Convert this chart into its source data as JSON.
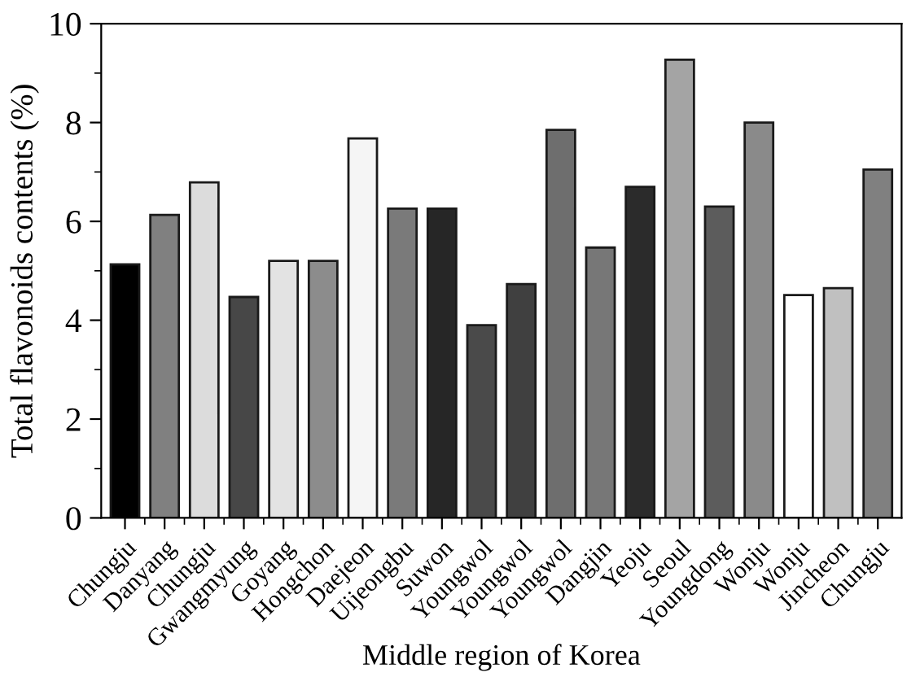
{
  "chart_data": {
    "type": "bar",
    "xlabel": "Middle region of Korea",
    "ylabel": "Total flavonoids contents (%)",
    "categories": [
      "Chungju",
      "Danyang",
      "Chungju",
      "Gwangmyung",
      "Goyang",
      "Hongchon",
      "Daejeon",
      "Uijeongbu",
      "Suwon",
      "Youngwol",
      "Youngwol",
      "Youngwol",
      "Dangjin",
      "Yeoju",
      "Seoul",
      "Youngdong",
      "Wonju",
      "Wonju",
      "Jincheon",
      "Chungju"
    ],
    "values": [
      5.13,
      6.13,
      6.79,
      4.47,
      5.2,
      5.2,
      7.68,
      6.26,
      6.26,
      3.9,
      4.73,
      7.85,
      5.47,
      6.7,
      9.27,
      6.3,
      8.0,
      4.51,
      4.65,
      7.05
    ],
    "colors": [
      "#000000",
      "#808080",
      "#dcdcdc",
      "#474747",
      "#e3e3e3",
      "#8c8c8c",
      "#f5f5f5",
      "#7a7a7a",
      "#262626",
      "#4a4a4a",
      "#404040",
      "#6e6e6e",
      "#777777",
      "#2b2b2b",
      "#a4a4a4",
      "#5c5c5c",
      "#8a8a8a",
      "#ffffff",
      "#c0c0c0",
      "#808080"
    ],
    "ylim": [
      0,
      10
    ],
    "yticks": [
      0,
      2,
      4,
      6,
      8,
      10
    ],
    "grid": false,
    "legend": false
  }
}
